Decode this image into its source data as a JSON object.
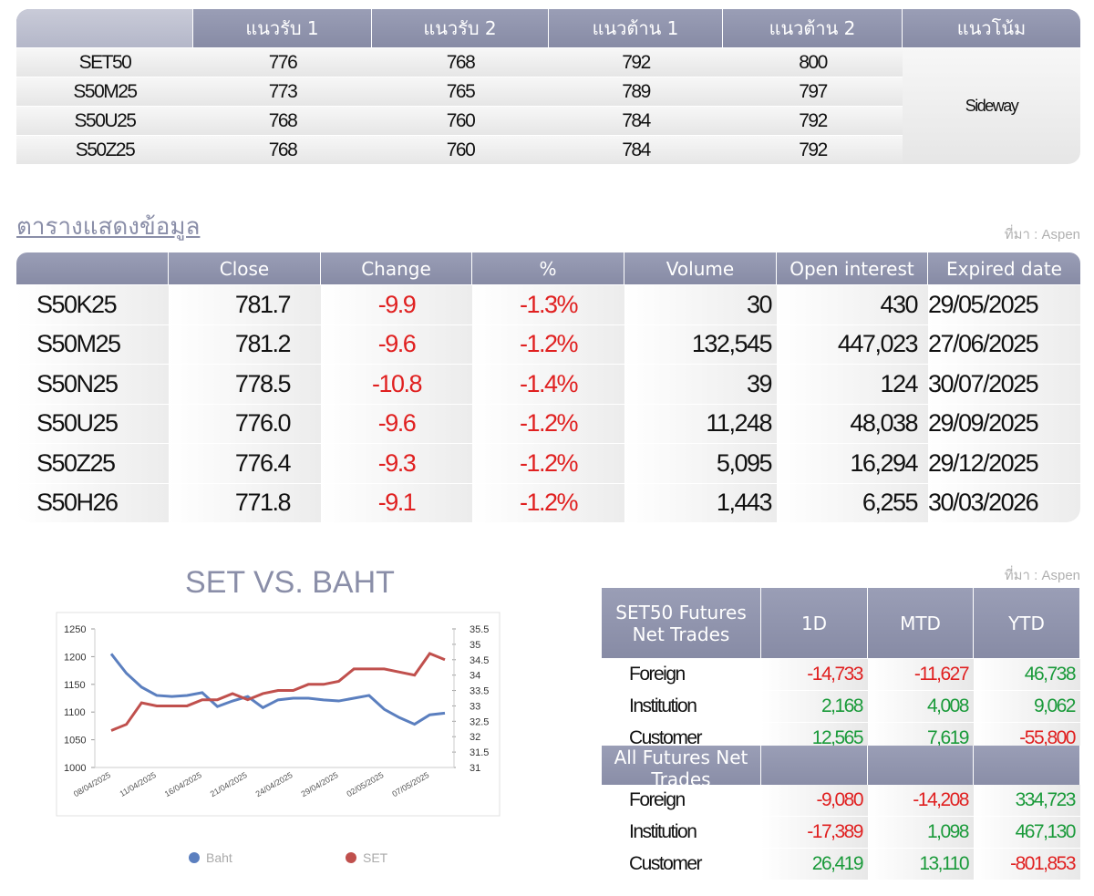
{
  "support_table": {
    "headers": [
      "แนวรับ 1",
      "แนวรับ 2",
      "แนวต้าน 1",
      "แนวต้าน 2",
      "แนวโน้ม"
    ],
    "rows": [
      {
        "label": "SET50",
        "values": [
          "776",
          "768",
          "792",
          "800"
        ]
      },
      {
        "label": "S50M25",
        "values": [
          "773",
          "765",
          "789",
          "797"
        ]
      },
      {
        "label": "S50U25",
        "values": [
          "768",
          "760",
          "784",
          "792"
        ]
      },
      {
        "label": "S50Z25",
        "values": [
          "768",
          "760",
          "784",
          "792"
        ]
      }
    ],
    "trend": "Sideway"
  },
  "futures_table": {
    "title": "ตารางแสดงข้อมูล",
    "source": "ที่มา : Aspen",
    "headers": [
      "Close",
      "Change",
      "%",
      "Volume",
      "Open interest",
      "Expired date"
    ],
    "rows": [
      [
        "S50K25",
        "781.7",
        "-9.9",
        "-1.3%",
        "30",
        "430",
        "29/05/2025"
      ],
      [
        "S50M25",
        "781.2",
        "-9.6",
        "-1.2%",
        "132,545",
        "447,023",
        "27/06/2025"
      ],
      [
        "S50N25",
        "778.5",
        "-10.8",
        "-1.4%",
        "39",
        "124",
        "30/07/2025"
      ],
      [
        "S50U25",
        "776.0",
        "-9.6",
        "-1.2%",
        "11,248",
        "48,038",
        "29/09/2025"
      ],
      [
        "S50Z25",
        "776.4",
        "-9.3",
        "-1.2%",
        "5,095",
        "16,294",
        "29/12/2025"
      ],
      [
        "S50H26",
        "771.8",
        "-9.1",
        "-1.2%",
        "1,443",
        "6,255",
        "30/03/2026"
      ]
    ]
  },
  "chart_data": {
    "type": "line",
    "title": "SET VS. BAHT",
    "categories": [
      "08/04/2025",
      null,
      null,
      "11/04/2025",
      null,
      null,
      "16/04/2025",
      null,
      null,
      "21/04/2025",
      null,
      null,
      "24/04/2025",
      null,
      null,
      "29/04/2025",
      null,
      null,
      "02/05/2025",
      null,
      null,
      "07/05/2025",
      null
    ],
    "series": [
      {
        "name": "Baht",
        "color": "#5b7fbf",
        "axis": "y",
        "values": [
          1205,
          1170,
          1145,
          1130,
          1128,
          1130,
          1135,
          1110,
          1120,
          1128,
          1108,
          1122,
          1125,
          1125,
          1122,
          1120,
          1125,
          1130,
          1105,
          1090,
          1078,
          1095,
          1098
        ]
      },
      {
        "name": "SET",
        "color": "#c0504d",
        "axis": "y2",
        "values": [
          32.2,
          32.4,
          33.1,
          33.0,
          33.0,
          33.0,
          33.2,
          33.2,
          33.4,
          33.2,
          33.4,
          33.5,
          33.5,
          33.7,
          33.7,
          33.8,
          34.2,
          34.2,
          34.2,
          34.1,
          34.0,
          34.7,
          34.5
        ]
      }
    ],
    "ylim": [
      1000,
      1250
    ],
    "yticks": [
      1000,
      1050,
      1100,
      1150,
      1200,
      1250
    ],
    "y2lim": [
      31,
      35.5
    ],
    "y2ticks": [
      31,
      31.5,
      32,
      32.5,
      33,
      33.5,
      34,
      34.5,
      35,
      35.5
    ],
    "grid": false
  },
  "net_trades": {
    "source": "ที่มา : Aspen",
    "columns": [
      "1D",
      "MTD",
      "YTD"
    ],
    "groups": [
      {
        "title": "SET50 Futures Net Trades",
        "rows": [
          {
            "label": "Foreign",
            "values": [
              "-14,733",
              "-11,627",
              "46,738"
            ]
          },
          {
            "label": "Institution",
            "values": [
              "2,168",
              "4,008",
              "9,062"
            ]
          },
          {
            "label": "Customer",
            "values": [
              "12,565",
              "7,619",
              "-55,800"
            ]
          }
        ]
      },
      {
        "title": "All Futures Net Trades",
        "rows": [
          {
            "label": "Foreign",
            "values": [
              "-9,080",
              "-14,208",
              "334,723"
            ]
          },
          {
            "label": "Institution",
            "values": [
              "-17,389",
              "1,098",
              "467,130"
            ]
          },
          {
            "label": "Customer",
            "values": [
              "26,419",
              "13,110",
              "-801,853"
            ]
          }
        ]
      }
    ]
  }
}
